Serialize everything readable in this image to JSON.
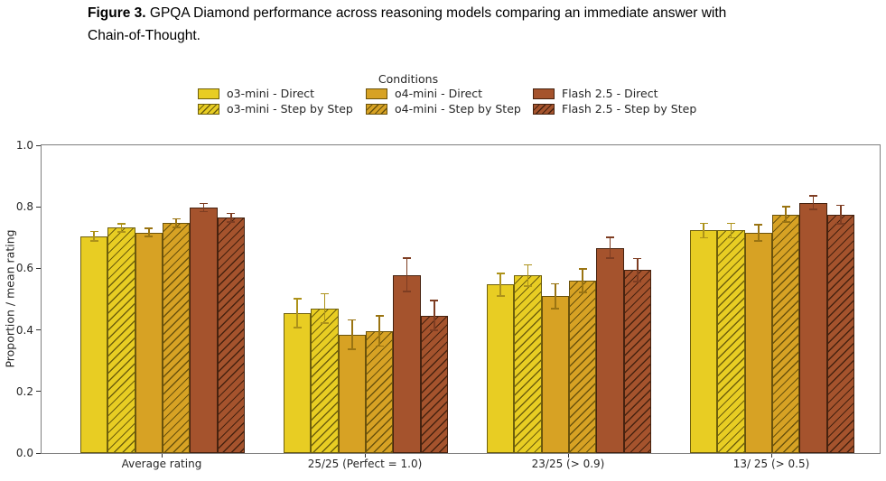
{
  "caption": {
    "bold": "Figure 3.",
    "rest": " GPQA Diamond performance across reasoning models comparing an immediate answer with Chain-of-Thought."
  },
  "chart_data": {
    "type": "bar",
    "title": "",
    "legend_title": "Conditions",
    "legend_position": "top-center",
    "grid": false,
    "xlabel": "",
    "ylabel": "Proportion / mean rating",
    "ylim": [
      0.0,
      1.0
    ],
    "yticks": [
      0.0,
      0.2,
      0.4,
      0.6,
      0.8,
      1.0
    ],
    "categories": [
      "Average rating",
      "25/25 (Perfect = 1.0)",
      "23/25 (> 0.9)",
      "13/ 25 (> 0.5)"
    ],
    "series": [
      {
        "name": "o3-mini - Direct",
        "fill": "#e8cd23",
        "edge": "#6e5f0c",
        "error_color": "#ad921a",
        "hatch": false,
        "values": [
          0.705,
          0.455,
          0.547,
          0.723
        ],
        "errors": [
          0.015,
          0.047,
          0.036,
          0.023
        ]
      },
      {
        "name": "o3-mini - Step by Step",
        "fill": "#e8cd23",
        "edge": "#6e5f0c",
        "error_color": "#ad921a",
        "hatch": true,
        "values": [
          0.732,
          0.47,
          0.577,
          0.723
        ],
        "errors": [
          0.013,
          0.048,
          0.035,
          0.023
        ]
      },
      {
        "name": "o4-mini - Direct",
        "fill": "#d7a224",
        "edge": "#6a520c",
        "error_color": "#9a7412",
        "hatch": false,
        "values": [
          0.717,
          0.385,
          0.51,
          0.716
        ],
        "errors": [
          0.014,
          0.048,
          0.04,
          0.026
        ]
      },
      {
        "name": "o4-mini - Step by Step",
        "fill": "#d7a224",
        "edge": "#6a520c",
        "error_color": "#9a7412",
        "hatch": true,
        "values": [
          0.747,
          0.397,
          0.56,
          0.775
        ],
        "errors": [
          0.014,
          0.049,
          0.038,
          0.025
        ]
      },
      {
        "name": "Flash 2.5 - Direct",
        "fill": "#a5532d",
        "edge": "#46220f",
        "error_color": "#7e3d22",
        "hatch": false,
        "values": [
          0.798,
          0.579,
          0.667,
          0.813
        ],
        "errors": [
          0.013,
          0.054,
          0.034,
          0.022
        ]
      },
      {
        "name": "Flash 2.5 - Step by Step",
        "fill": "#a5532d",
        "edge": "#46220f",
        "error_color": "#7e3d22",
        "hatch": true,
        "values": [
          0.764,
          0.447,
          0.595,
          0.775
        ],
        "errors": [
          0.014,
          0.049,
          0.037,
          0.03
        ]
      }
    ]
  }
}
